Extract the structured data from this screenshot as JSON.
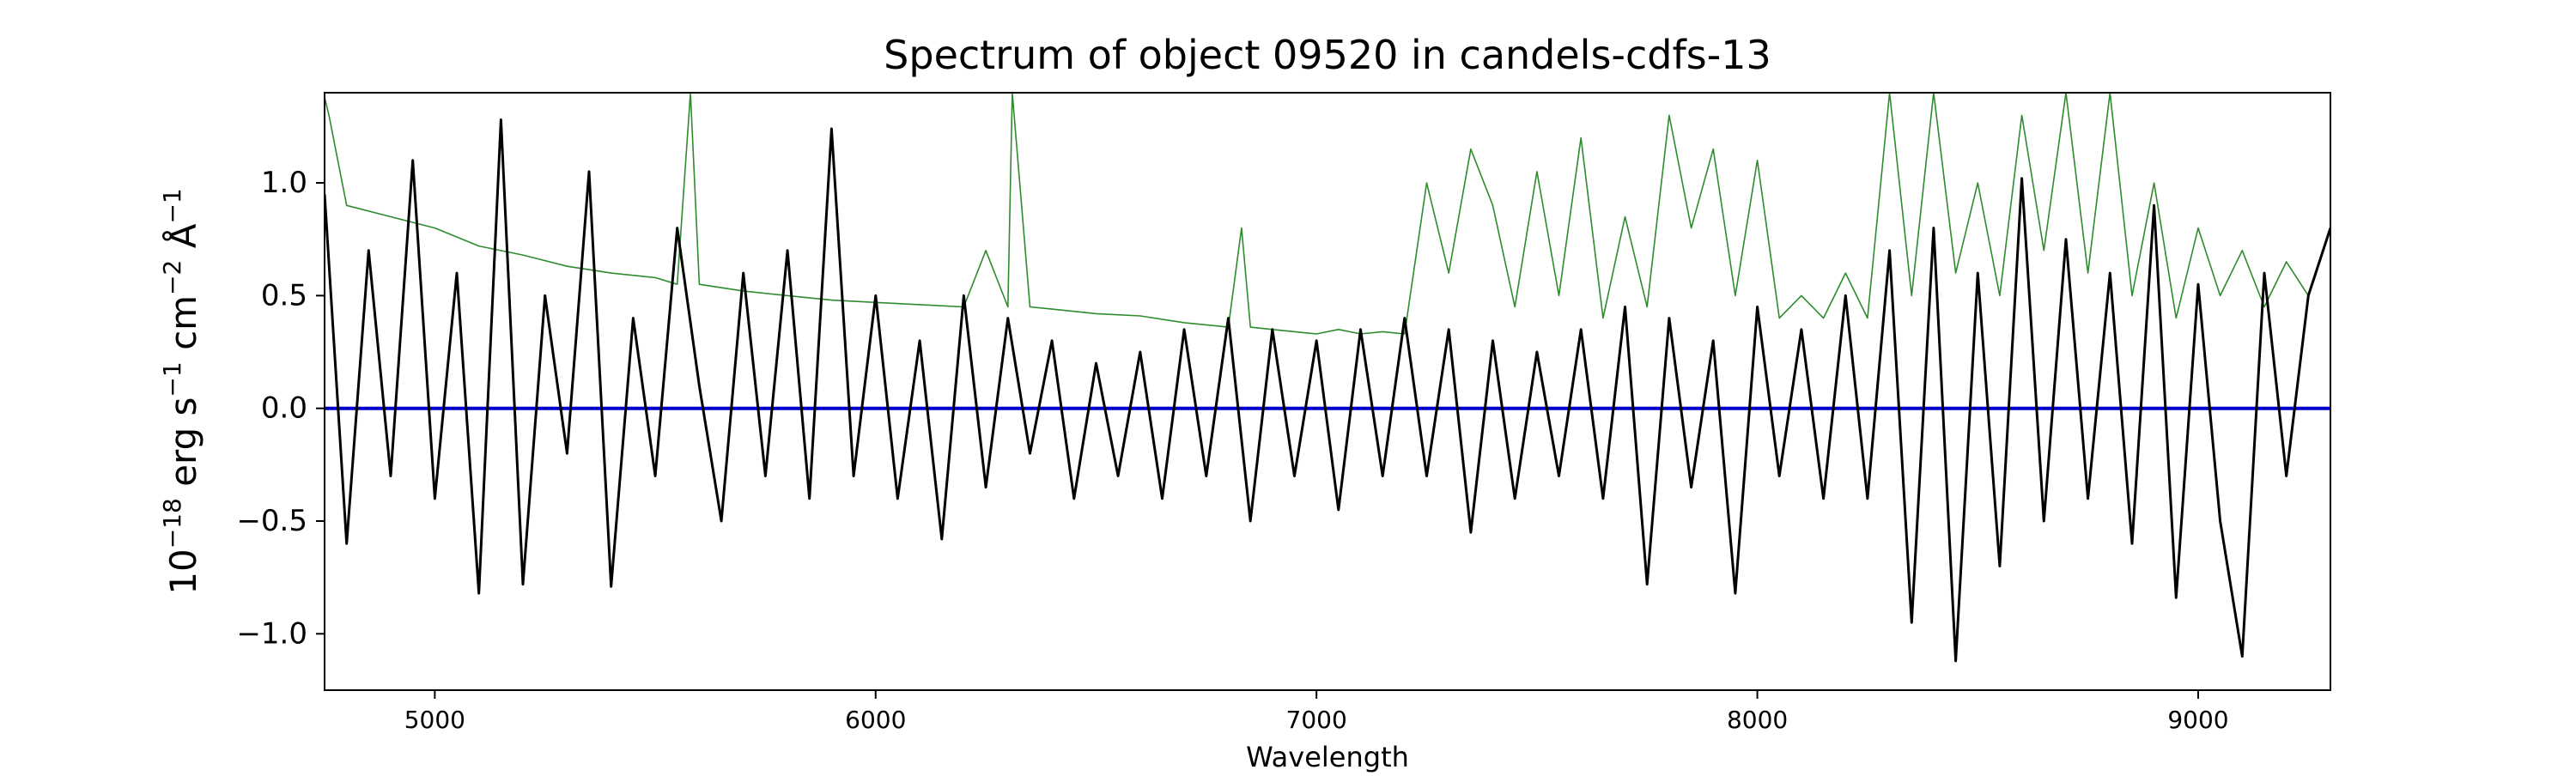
{
  "chart_data": {
    "type": "line",
    "title": "Spectrum of object 09520 in candels-cdfs-13",
    "xlabel": "Wavelength",
    "ylabel_parts": {
      "p1": "10",
      "p1_sup": "−18",
      "p2": " erg s",
      "p2_sup": "−1",
      "p3": " cm",
      "p3_sup": "−2",
      "p4": " Å",
      "p4_sup": "−1"
    },
    "xlim": [
      4750,
      9300
    ],
    "ylim": [
      -1.25,
      1.4
    ],
    "xticks": [
      5000,
      6000,
      7000,
      8000,
      9000
    ],
    "xtick_labels": [
      "5000",
      "6000",
      "7000",
      "8000",
      "9000"
    ],
    "yticks": [
      1.0,
      0.5,
      0.0,
      -0.5,
      -1.0
    ],
    "ytick_labels": [
      "1.0",
      "0.5",
      "0.0",
      "−0.5",
      "−1.0"
    ],
    "grid": false,
    "colors": {
      "flux": "#000000",
      "error": "#2e8b2e",
      "model": "#0000cc"
    },
    "series": [
      {
        "role": "flux",
        "x": [
          4750,
          4800,
          4850,
          4900,
          4950,
          5000,
          5050,
          5100,
          5150,
          5200,
          5250,
          5300,
          5350,
          5400,
          5450,
          5500,
          5550,
          5600,
          5650,
          5700,
          5750,
          5800,
          5850,
          5900,
          5950,
          6000,
          6050,
          6100,
          6150,
          6200,
          6250,
          6300,
          6350,
          6400,
          6450,
          6500,
          6550,
          6600,
          6650,
          6700,
          6750,
          6800,
          6850,
          6900,
          6950,
          7000,
          7050,
          7100,
          7150,
          7200,
          7250,
          7300,
          7350,
          7400,
          7450,
          7500,
          7550,
          7600,
          7650,
          7700,
          7750,
          7800,
          7850,
          7900,
          7950,
          8000,
          8050,
          8100,
          8150,
          8200,
          8250,
          8300,
          8350,
          8400,
          8450,
          8500,
          8550,
          8600,
          8650,
          8700,
          8750,
          8800,
          8850,
          8900,
          8950,
          9000,
          9050,
          9100,
          9150,
          9200,
          9250,
          9300
        ],
        "y": [
          0.95,
          -0.6,
          0.7,
          -0.3,
          1.1,
          -0.4,
          0.6,
          -0.82,
          1.28,
          -0.78,
          0.5,
          -0.2,
          1.05,
          -0.79,
          0.4,
          -0.3,
          0.8,
          0.1,
          -0.5,
          0.6,
          -0.3,
          0.7,
          -0.4,
          1.24,
          -0.3,
          0.5,
          -0.4,
          0.3,
          -0.58,
          0.5,
          -0.35,
          0.4,
          -0.2,
          0.3,
          -0.4,
          0.2,
          -0.3,
          0.25,
          -0.4,
          0.35,
          -0.3,
          0.4,
          -0.5,
          0.35,
          -0.3,
          0.3,
          -0.45,
          0.35,
          -0.3,
          0.4,
          -0.3,
          0.35,
          -0.55,
          0.3,
          -0.4,
          0.25,
          -0.3,
          0.35,
          -0.4,
          0.45,
          -0.78,
          0.4,
          -0.35,
          0.3,
          -0.82,
          0.45,
          -0.3,
          0.35,
          -0.4,
          0.5,
          -0.4,
          0.7,
          -0.95,
          0.8,
          -1.12,
          0.6,
          -0.7,
          1.02,
          -0.5,
          0.75,
          -0.4,
          0.6,
          -0.6,
          0.9,
          -0.84,
          0.55,
          -0.5,
          -1.1,
          0.6,
          -0.3,
          0.5,
          0.8
        ]
      },
      {
        "role": "error",
        "x": [
          4750,
          4760,
          4800,
          4900,
          5000,
          5100,
          5200,
          5300,
          5400,
          5500,
          5550,
          5580,
          5600,
          5700,
          5800,
          5900,
          6000,
          6100,
          6200,
          6250,
          6300,
          6310,
          6350,
          6400,
          6500,
          6600,
          6700,
          6800,
          6830,
          6850,
          6900,
          6950,
          7000,
          7050,
          7100,
          7150,
          7200,
          7250,
          7300,
          7350,
          7400,
          7450,
          7500,
          7550,
          7600,
          7650,
          7700,
          7750,
          7800,
          7850,
          7900,
          7950,
          8000,
          8050,
          8100,
          8150,
          8200,
          8250,
          8300,
          8350,
          8400,
          8450,
          8500,
          8550,
          8600,
          8650,
          8700,
          8750,
          8800,
          8850,
          8900,
          8950,
          9000,
          9050,
          9100,
          9150,
          9200,
          9250,
          9300
        ],
        "y": [
          1.38,
          1.3,
          0.9,
          0.85,
          0.8,
          0.72,
          0.68,
          0.63,
          0.6,
          0.58,
          0.55,
          1.4,
          0.55,
          0.52,
          0.5,
          0.48,
          0.47,
          0.46,
          0.45,
          0.7,
          0.45,
          1.4,
          0.45,
          0.44,
          0.42,
          0.41,
          0.38,
          0.36,
          0.8,
          0.36,
          0.35,
          0.34,
          0.33,
          0.35,
          0.33,
          0.34,
          0.33,
          1.0,
          0.6,
          1.15,
          0.9,
          0.45,
          1.05,
          0.5,
          1.2,
          0.4,
          0.85,
          0.45,
          1.3,
          0.8,
          1.15,
          0.5,
          1.1,
          0.4,
          0.5,
          0.4,
          0.6,
          0.4,
          1.4,
          0.5,
          1.4,
          0.6,
          1.0,
          0.5,
          1.3,
          0.7,
          1.4,
          0.6,
          1.4,
          0.5,
          1.0,
          0.4,
          0.8,
          0.5,
          0.7,
          0.45,
          0.65,
          0.5,
          0.8
        ]
      },
      {
        "role": "model",
        "x": [
          4750,
          9300
        ],
        "y": [
          0.0,
          0.0
        ]
      }
    ]
  }
}
